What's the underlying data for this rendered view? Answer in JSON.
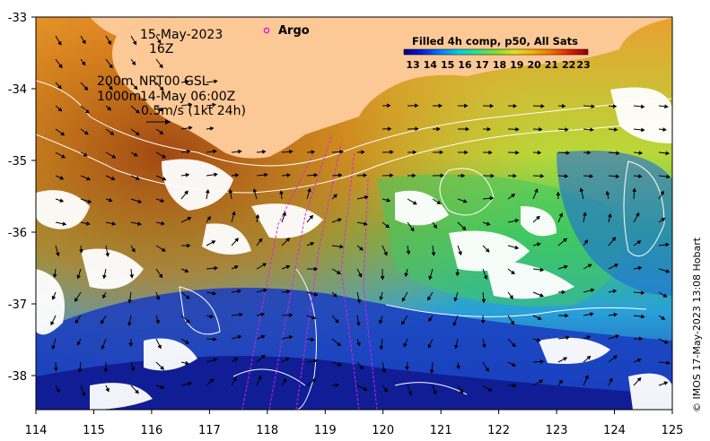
{
  "map": {
    "timestamp_date": "15-May-2023",
    "timestamp_hour": "16Z",
    "legend_argo": "Argo",
    "contour_depths": [
      "200m",
      "1000m"
    ],
    "current_product": "NRT00 GSL",
    "current_time": "14-May 06:00Z",
    "scale_arrow_label": "0.5m/s (1kt 24h)",
    "colorbar_title": "Filled 4h comp, p50, All Sats",
    "colorbar_ticks": [
      "13",
      "14",
      "15",
      "16",
      "17",
      "18",
      "19",
      "20",
      "21",
      "22",
      "23"
    ],
    "credit": "© IMOS 17-May-2023 13:08 Hobart",
    "x_ticks": [
      "114",
      "115",
      "116",
      "117",
      "118",
      "119",
      "120",
      "121",
      "122",
      "123",
      "124",
      "125"
    ],
    "y_ticks": [
      "-33",
      "-34",
      "-35",
      "-36",
      "-37",
      "-38"
    ],
    "colors": {
      "land": "#fcc896",
      "argo_marker": "#e020e0",
      "contour": "#ffffff",
      "arrows": "#000000"
    }
  }
}
